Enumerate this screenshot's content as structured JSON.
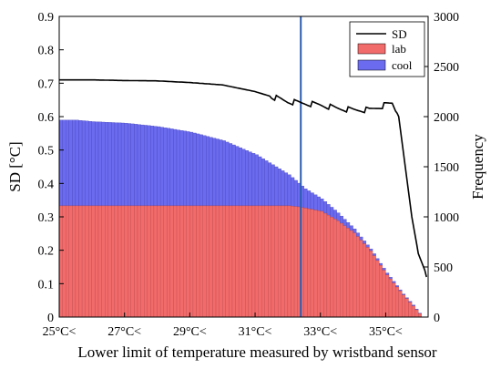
{
  "chart_data": {
    "type": "bar+line",
    "xlabel": "Lower limit of temperature measured by wristband sensor",
    "ylabel_left": "SD [°C]",
    "ylabel_right": "Frequency",
    "xlim": [
      25,
      36.3
    ],
    "ylim_left": [
      0,
      0.9
    ],
    "ylim_right": [
      0,
      3000
    ],
    "x_ticks": [
      25,
      27,
      29,
      31,
      33,
      35
    ],
    "x_tick_labels": [
      "25°C<",
      "27°C<",
      "29°C<",
      "31°C<",
      "33°C<",
      "35°C<"
    ],
    "y_left_ticks": [
      "0",
      "0.1",
      "0.2",
      "0.3",
      "0.4",
      "0.5",
      "0.6",
      "0.7",
      "0.8",
      "0.9"
    ],
    "y_right_ticks": [
      "0",
      "500",
      "1000",
      "1500",
      "2000",
      "2500",
      "3000"
    ],
    "legend": {
      "position": "top-right",
      "entries": [
        "SD",
        "lab",
        "cool"
      ]
    },
    "colors": {
      "sd_line": "#000000",
      "lab": "#f26b6b",
      "cool": "#6b6bf0",
      "vline": "#2a5db0"
    },
    "vertical_line_x": 32.4,
    "bar_step": 0.1,
    "lab_profile": [
      [
        25,
        1110
      ],
      [
        32,
        1110
      ],
      [
        32.3,
        1100
      ],
      [
        33.0,
        1055
      ],
      [
        33.5,
        960
      ],
      [
        34.0,
        840
      ],
      [
        34.5,
        660
      ],
      [
        35.0,
        420
      ],
      [
        35.5,
        220
      ],
      [
        35.8,
        110
      ],
      [
        36.0,
        35
      ],
      [
        36.1,
        0
      ]
    ],
    "total_profile": [
      [
        25,
        1965
      ],
      [
        25.5,
        1965
      ],
      [
        26.0,
        1950
      ],
      [
        27.0,
        1935
      ],
      [
        28.0,
        1900
      ],
      [
        29.0,
        1845
      ],
      [
        30.0,
        1760
      ],
      [
        31.0,
        1620
      ],
      [
        32.0,
        1420
      ],
      [
        32.5,
        1280
      ],
      [
        33.0,
        1180
      ],
      [
        33.5,
        1040
      ],
      [
        34.0,
        880
      ],
      [
        34.5,
        680
      ],
      [
        35.0,
        440
      ],
      [
        35.5,
        230
      ],
      [
        35.8,
        120
      ],
      [
        36.0,
        40
      ],
      [
        36.1,
        0
      ]
    ],
    "sd_profile": [
      [
        25,
        0.71
      ],
      [
        26.0,
        0.71
      ],
      [
        27.0,
        0.708
      ],
      [
        28.0,
        0.707
      ],
      [
        29.0,
        0.702
      ],
      [
        30.0,
        0.695
      ],
      [
        31.0,
        0.675
      ],
      [
        31.5,
        0.66
      ],
      [
        32.0,
        0.645
      ],
      [
        32.5,
        0.64
      ],
      [
        33.0,
        0.635
      ],
      [
        33.5,
        0.625
      ],
      [
        34.0,
        0.62
      ],
      [
        34.5,
        0.62
      ],
      [
        35.0,
        0.635
      ],
      [
        35.2,
        0.64
      ],
      [
        35.4,
        0.6
      ],
      [
        35.6,
        0.45
      ],
      [
        35.8,
        0.3
      ],
      [
        36.0,
        0.19
      ],
      [
        36.2,
        0.14
      ],
      [
        36.25,
        0.12
      ]
    ]
  }
}
